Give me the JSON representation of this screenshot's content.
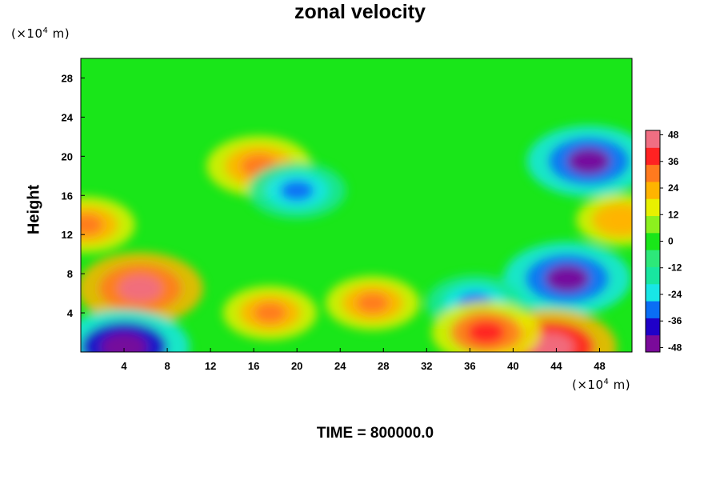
{
  "chart_data": {
    "type": "heatmap",
    "title": "zonal velocity",
    "ylabel": "Height",
    "xlabel": "",
    "x_unit": "(×10⁴ m)",
    "y_unit": "(×10⁴ m)",
    "footer": "TIME = 800000.0",
    "xlim": [
      0,
      51
    ],
    "ylim": [
      0,
      30
    ],
    "x_ticks": [
      4,
      8,
      12,
      16,
      20,
      24,
      28,
      32,
      36,
      40,
      44,
      48
    ],
    "y_ticks": [
      4,
      8,
      12,
      16,
      20,
      24,
      28
    ],
    "colorbar": {
      "range": [
        -50,
        50
      ],
      "ticks": [
        48,
        36,
        24,
        12,
        0,
        -12,
        -24,
        -36,
        -48
      ],
      "colors": [
        "#7a0a9a",
        "#1f00c8",
        "#0a6ef5",
        "#18e6e6",
        "#18e6a0",
        "#2de87a",
        "#19e619",
        "#8cf01e",
        "#e8f000",
        "#ffb400",
        "#ff7a1e",
        "#ff2222",
        "#f06e82"
      ]
    },
    "features": [
      {
        "x": 5.5,
        "y": 6.5,
        "value": 45,
        "note": "strong positive core, lower left"
      },
      {
        "x": 45.0,
        "y": 7.5,
        "value": -46,
        "note": "strong negative core"
      },
      {
        "x": 43.5,
        "y": 0.5,
        "value": 48,
        "note": "positive jet near surface"
      },
      {
        "x": 4.0,
        "y": 0.5,
        "value": -48,
        "note": "negative surface flow"
      },
      {
        "x": 47.0,
        "y": 19.5,
        "value": -44,
        "note": "negative core below tropopause"
      },
      {
        "x": 16.5,
        "y": 19.0,
        "value": 34,
        "note": "positive band near 19"
      },
      {
        "x": 20.0,
        "y": 16.5,
        "value": -30,
        "note": "negative band"
      },
      {
        "x": 17.5,
        "y": 4.0,
        "value": 28,
        "note": "positive blob"
      },
      {
        "x": 27.0,
        "y": 5.0,
        "value": 28,
        "note": "positive blob"
      },
      {
        "x": 36.5,
        "y": 5.0,
        "value": -30,
        "note": "negative blob"
      },
      {
        "x": 37.5,
        "y": 2.0,
        "value": 36,
        "note": "positive blob near surface"
      },
      {
        "x": 0.5,
        "y": 13.0,
        "value": 30,
        "note": "positive at left edge"
      },
      {
        "x": 50.0,
        "y": 13.5,
        "value": 26,
        "note": "positive at right edge"
      }
    ],
    "grid": false,
    "legend": "colorbar right"
  }
}
